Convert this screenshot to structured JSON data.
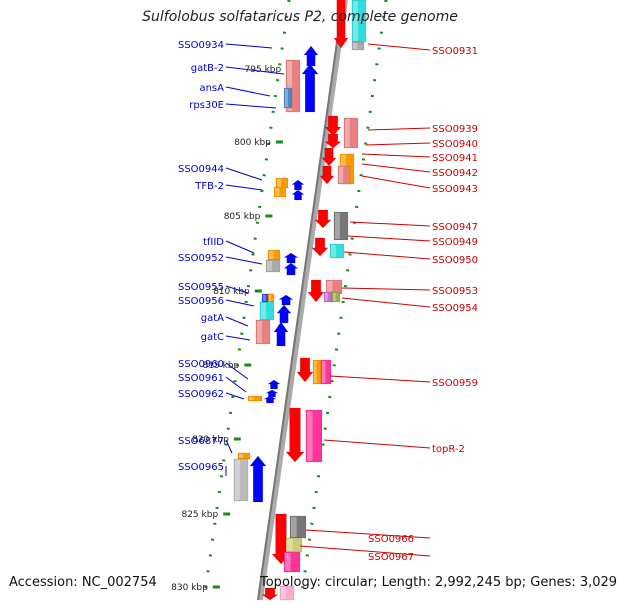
{
  "title": "Sulfolobus solfataricus P2, complete genome",
  "accession": "Accession: NC_002754",
  "topology": "Topology: circular; Length: 2,992,245 bp; Genes: 3,029",
  "colors": {
    "left_label": "#0000cc",
    "right_label": "#cc0000",
    "backbone": "#888888",
    "tick": "#1a8a1a",
    "strand_forward": "#0000ff",
    "strand_reverse": "#ff0000",
    "orange": "#ff9900",
    "cyan": "#33dddd",
    "pink": "#ff3399",
    "salmon": "#e88080",
    "gray": "#777777"
  },
  "scale_labels": [
    "795 kbp",
    "800 kbp",
    "805 kbp",
    "810 kbp",
    "815 kbp",
    "820 kbp",
    "825 kbp",
    "830 kbp"
  ],
  "left_genes": [
    "SSO0934",
    "gatB-2",
    "ansA",
    "rps30E",
    "SSO0944",
    "TFB-2",
    "tfIID",
    "SSO0952",
    "SSO0955",
    "SSO0956",
    "gatA",
    "gatC",
    "SSO0960",
    "SSO0961",
    "SSO0962",
    "SSO6877",
    "SSO0965"
  ],
  "right_genes": [
    "SSO0931",
    "SSO0939",
    "SSO0940",
    "SSO0941",
    "SSO0942",
    "SSO0943",
    "SSO0947",
    "SSO0949",
    "SSO0950",
    "SSO0953",
    "SSO0954",
    "SSO0959",
    "topR-2",
    "SSO0966",
    "SSO0967"
  ]
}
